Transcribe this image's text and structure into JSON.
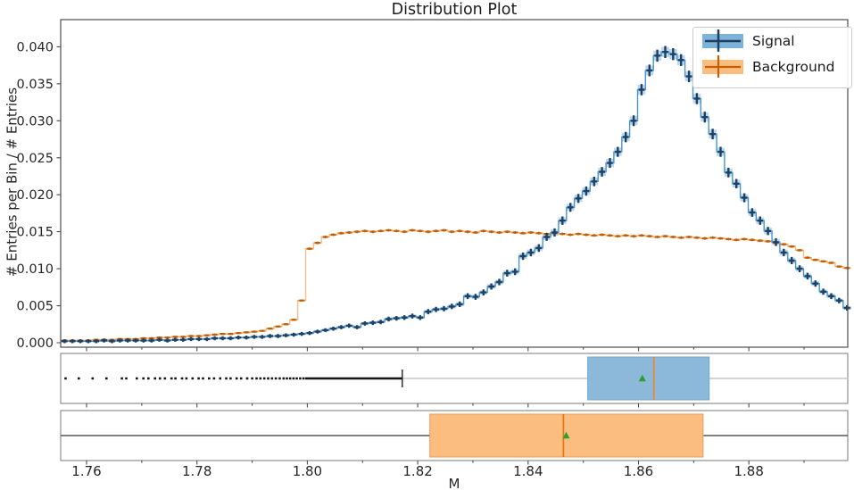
{
  "title": "Distribution Plot",
  "legend": {
    "items": [
      {
        "label": "Signal"
      },
      {
        "label": "Background"
      }
    ]
  },
  "axes": {
    "ylabel": "# Entries per Bin / # Entries",
    "xlabel": "M",
    "yticks": {
      "values": [
        0,
        0.005,
        0.01,
        0.015,
        0.02,
        0.025,
        0.03,
        0.035,
        0.04
      ],
      "labels": [
        "0.000",
        "0.005",
        "0.010",
        "0.015",
        "0.020",
        "0.025",
        "0.030",
        "0.035",
        "0.040"
      ]
    },
    "xticks": {
      "values": [
        1.76,
        1.78,
        1.8,
        1.82,
        1.84,
        1.86,
        1.88
      ],
      "labels": [
        "1.76",
        "1.78",
        "1.80",
        "1.82",
        "1.84",
        "1.86",
        "1.88"
      ],
      "minor": [
        1.77,
        1.79,
        1.81,
        1.83,
        1.85,
        1.87,
        1.89
      ]
    }
  },
  "colors": {
    "signal_line": "#4a94ca",
    "signal_band": "#bdd7ec",
    "signal_marker": "#1c4164",
    "background_step": "#f6bc8d",
    "background_line": "#ee8c33",
    "background_marker": "#bd5d04",
    "box_signal_fill": "#8cb8da",
    "box_signal_edge": "#74a7cd",
    "box_background_fill": "#fcbd80",
    "box_background_edge": "#f09a55",
    "median_signal": "#e88a32",
    "median_background": "#e2761b",
    "mean_marker": "#2ca02c",
    "whisker_signal": "#c6c6c6",
    "whisker_background": "#565656",
    "flier": "#141414",
    "spine_main": "#4d4d4d",
    "spine_box": "#858585",
    "text": "#262626"
  },
  "chart_data": [
    {
      "type": "area",
      "subtype": "step-histogram-with-errorbars",
      "title": "Distribution Plot",
      "xlabel": "M",
      "ylabel": "# Entries per Bin / # Entries",
      "xlim": [
        1.7553,
        1.8979
      ],
      "ylim": [
        0,
        0.0443
      ],
      "grid": false,
      "legend_position": "upper right",
      "x_start": 1.7553,
      "bin_width": 0.001432,
      "n_bins": 100,
      "value_unit": 0.0001,
      "series": [
        {
          "name": "Signal",
          "values": [
            2,
            2,
            2,
            2,
            2,
            3,
            2,
            3,
            3,
            3,
            3,
            3,
            4,
            3,
            4,
            4,
            5,
            5,
            5,
            6,
            6,
            6,
            7,
            7,
            8,
            8,
            9,
            9,
            10,
            11,
            12,
            13,
            15,
            17,
            19,
            21,
            23,
            21,
            26,
            27,
            28,
            32,
            33,
            34,
            36,
            34,
            42,
            45,
            46,
            49,
            52,
            63,
            62,
            68,
            76,
            82,
            94,
            96,
            117,
            122,
            128,
            143,
            149,
            165,
            183,
            195,
            205,
            218,
            231,
            243,
            258,
            278,
            300,
            342,
            368,
            388,
            393,
            390,
            382,
            360,
            330,
            305,
            282,
            258,
            230,
            215,
            196,
            176,
            165,
            151,
            136,
            122,
            111,
            100,
            90,
            80,
            69,
            63,
            57,
            47
          ]
        },
        {
          "name": "Background",
          "values": [
            3,
            3,
            3,
            3,
            4,
            4,
            4,
            5,
            5,
            5,
            6,
            6,
            7,
            7,
            8,
            8,
            9,
            9,
            10,
            11,
            12,
            12,
            13,
            14,
            15,
            16,
            19,
            22,
            25,
            31,
            57,
            127,
            135,
            143,
            146,
            148,
            149,
            150,
            151,
            150,
            151,
            152,
            151,
            150,
            152,
            151,
            150,
            151,
            152,
            150,
            151,
            150,
            149,
            151,
            150,
            149,
            150,
            149,
            148,
            149,
            148,
            147,
            148,
            147,
            146,
            147,
            146,
            145,
            146,
            145,
            144,
            145,
            144,
            145,
            144,
            143,
            144,
            143,
            142,
            143,
            142,
            141,
            142,
            141,
            140,
            139,
            140,
            139,
            138,
            137,
            135,
            133,
            130,
            125,
            115,
            112,
            110,
            108,
            103,
            101
          ]
        }
      ]
    },
    {
      "type": "boxplot",
      "name": "Signal",
      "q1": 1.8508,
      "median": 1.8628,
      "q3": 1.8728,
      "mean": 1.8607,
      "whisker_low": 1.8172,
      "whisker_high": 1.898,
      "fliers": [
        1.7562,
        1.7586,
        1.7611,
        1.7636,
        1.7664,
        1.7672,
        1.7691,
        1.7703,
        1.7712,
        1.7724,
        1.7733,
        1.7742,
        1.7754,
        1.7761,
        1.7773,
        1.7781,
        1.7792,
        1.7803,
        1.7811,
        1.7822,
        1.7831,
        1.7842,
        1.7853,
        1.7861,
        1.7872,
        1.788,
        1.7891,
        1.79,
        1.7908,
        1.7915,
        1.7922,
        1.7929,
        1.7936,
        1.7943,
        1.795,
        1.7957,
        1.7963,
        1.7969,
        1.7975,
        1.7981,
        1.7987,
        1.7993,
        1.7998,
        1.8002,
        1.8006,
        1.801,
        1.8014,
        1.8018,
        1.8022,
        1.8026,
        1.803,
        1.8034,
        1.8038,
        1.8042,
        1.8046,
        1.805,
        1.8054,
        1.8058,
        1.8062,
        1.8066,
        1.807,
        1.8074,
        1.8078,
        1.8082,
        1.8086,
        1.809,
        1.8094,
        1.8098,
        1.8102,
        1.8106,
        1.811,
        1.8114,
        1.8118,
        1.8122,
        1.8126,
        1.813,
        1.8134,
        1.8138,
        1.8142,
        1.8146,
        1.815,
        1.8154,
        1.8158,
        1.8162,
        1.8166,
        1.817
      ]
    },
    {
      "type": "boxplot",
      "name": "Background",
      "q1": 1.8222,
      "median": 1.8464,
      "q3": 1.8717,
      "mean": 1.8469,
      "whisker_low": 1.7553,
      "whisker_high": 1.898,
      "fliers": []
    }
  ]
}
